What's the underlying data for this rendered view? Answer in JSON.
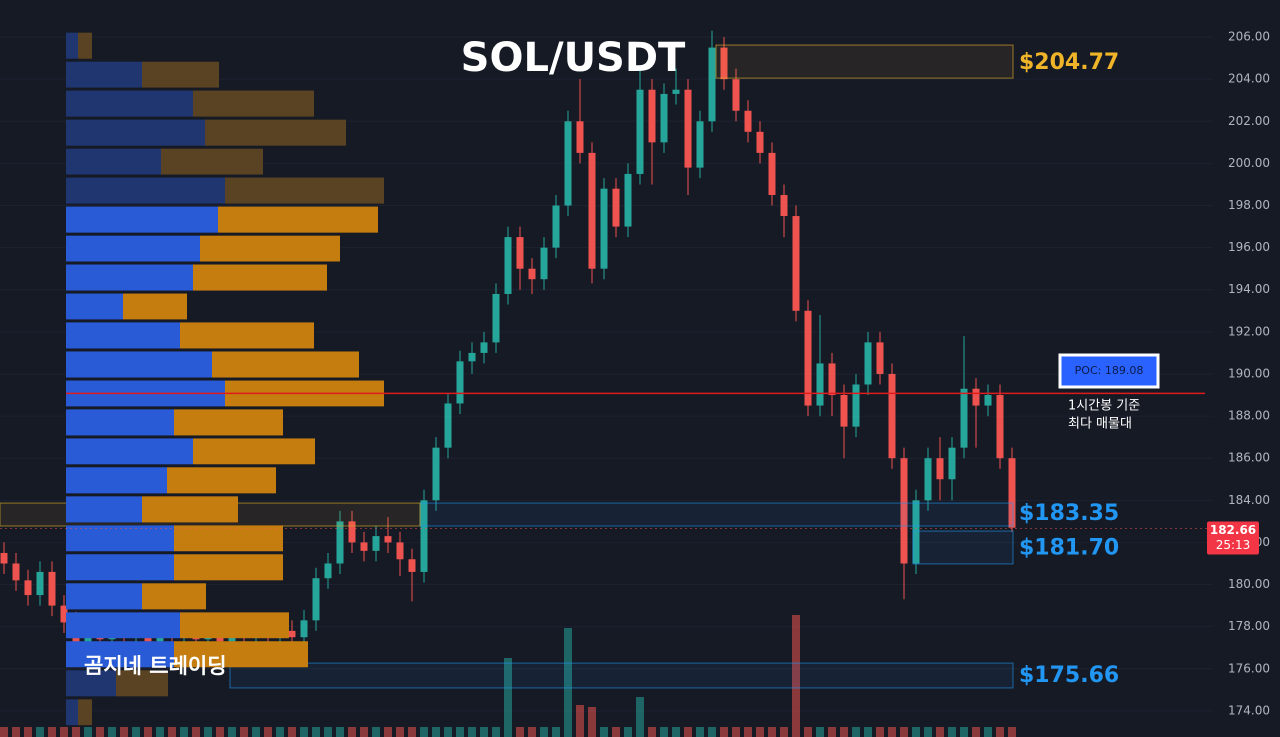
{
  "chart_data": {
    "type": "candlestick",
    "title": "SOL/USDT",
    "watermark": "곰지네 트레이딩",
    "ylim": [
      172.76,
      207.76
    ],
    "yticks": [
      {
        "value": 174,
        "label": "174.00"
      },
      {
        "value": 176,
        "label": "176.00"
      },
      {
        "value": 178,
        "label": "178.00"
      },
      {
        "value": 180,
        "label": "180.00"
      },
      {
        "value": 182,
        "label": "182.00"
      },
      {
        "value": 184,
        "label": "184.00"
      },
      {
        "value": 186,
        "label": "186.00"
      },
      {
        "value": 188,
        "label": "188.00"
      },
      {
        "value": 190,
        "label": "190.00"
      },
      {
        "value": 192,
        "label": "192.00"
      },
      {
        "value": 194,
        "label": "194.00"
      },
      {
        "value": 196,
        "label": "196.00"
      },
      {
        "value": 198,
        "label": "198.00"
      },
      {
        "value": 200,
        "label": "200.00"
      },
      {
        "value": 202,
        "label": "202.00"
      },
      {
        "value": 204,
        "label": "204.00"
      },
      {
        "value": 206,
        "label": "206.00"
      }
    ],
    "grid": true,
    "up_color": "#26a69a",
    "down_color": "#ef5350",
    "candles": {
      "open": [
        181.5,
        181.0,
        180.2,
        179.5,
        180.6,
        179.0,
        178.2,
        177.2,
        177.8,
        177.4,
        177.9,
        177.5,
        177.7,
        177.3,
        177.8,
        177.5,
        177.9,
        177.4,
        177.6,
        177.3,
        177.8,
        177.6,
        177.9,
        177.6,
        177.8,
        177.5,
        178.3,
        180.3,
        181.0,
        183.0,
        182.0,
        181.6,
        182.3,
        182.0,
        181.2,
        180.6,
        184.0,
        186.5,
        188.6,
        190.6,
        191.0,
        191.5,
        193.8,
        196.5,
        195.0,
        194.5,
        196.0,
        198.0,
        202.0,
        200.5,
        195.0,
        198.8,
        197.0,
        199.5,
        203.5,
        201.0,
        203.3,
        203.5,
        199.8,
        202.0,
        205.5,
        204.0,
        202.5,
        201.5,
        200.5,
        198.5,
        197.5,
        193.0,
        188.5,
        190.5,
        189.0,
        187.5,
        189.5,
        191.5,
        190.0,
        186.0,
        181.0,
        184.0,
        186.0,
        185.0,
        186.5,
        189.3,
        188.5,
        189.0,
        186.0
      ],
      "high": [
        182.0,
        181.5,
        180.7,
        181.1,
        181.1,
        179.5,
        178.7,
        178.3,
        178.3,
        178.4,
        178.4,
        178.2,
        178.2,
        178.3,
        178.3,
        178.4,
        178.4,
        178.1,
        178.1,
        178.3,
        178.3,
        178.4,
        178.4,
        178.3,
        178.3,
        178.8,
        180.8,
        181.5,
        183.5,
        183.5,
        182.5,
        182.8,
        183.2,
        182.5,
        181.7,
        184.5,
        187.0,
        189.1,
        191.1,
        191.5,
        192.0,
        194.3,
        197.0,
        197.0,
        195.5,
        196.5,
        198.5,
        202.5,
        204.0,
        201.0,
        199.3,
        199.3,
        200.0,
        204.5,
        204.0,
        203.8,
        204.5,
        204.0,
        202.5,
        206.3,
        206.0,
        204.5,
        203.0,
        202.0,
        201.0,
        199.0,
        198.0,
        193.5,
        192.8,
        191.0,
        189.5,
        190.0,
        192.0,
        192.0,
        190.5,
        186.5,
        184.5,
        186.5,
        187.0,
        187.0,
        191.8,
        189.8,
        189.5,
        189.5,
        186.5
      ],
      "low": [
        180.5,
        179.7,
        179.0,
        179.0,
        178.5,
        177.7,
        176.3,
        176.7,
        176.9,
        176.9,
        177.0,
        177.0,
        176.8,
        176.8,
        177.0,
        177.0,
        176.9,
        176.9,
        176.8,
        176.8,
        177.1,
        177.1,
        177.1,
        177.1,
        177.0,
        177.0,
        177.8,
        179.8,
        180.5,
        181.5,
        181.1,
        181.1,
        181.5,
        180.4,
        179.2,
        180.1,
        183.5,
        186.0,
        188.1,
        190.0,
        190.5,
        191.0,
        193.3,
        194.0,
        193.8,
        194.0,
        195.5,
        197.5,
        200.0,
        194.3,
        194.5,
        196.5,
        196.5,
        199.0,
        199.0,
        200.5,
        202.8,
        198.5,
        199.3,
        201.5,
        203.5,
        202.0,
        201.0,
        200.0,
        198.0,
        196.5,
        192.5,
        188.0,
        188.0,
        188.0,
        186.0,
        187.0,
        189.0,
        189.5,
        185.5,
        179.3,
        180.5,
        183.5,
        184.0,
        184.0,
        186.0,
        186.5,
        188.0,
        185.5,
        182.5
      ],
      "close": [
        181.0,
        180.2,
        179.5,
        180.6,
        179.0,
        178.2,
        177.2,
        177.8,
        177.4,
        177.9,
        177.5,
        177.7,
        177.3,
        177.8,
        177.5,
        177.9,
        177.4,
        177.6,
        177.3,
        177.8,
        177.6,
        177.9,
        177.6,
        177.8,
        177.5,
        178.3,
        180.3,
        181.0,
        183.0,
        182.0,
        181.6,
        182.3,
        182.0,
        181.2,
        180.6,
        184.0,
        186.5,
        188.6,
        190.6,
        191.0,
        191.5,
        193.8,
        196.5,
        195.0,
        194.5,
        196.0,
        198.0,
        202.0,
        200.5,
        195.0,
        198.8,
        197.0,
        199.5,
        203.5,
        201.0,
        203.3,
        203.5,
        199.8,
        202.0,
        205.5,
        204.0,
        202.5,
        201.5,
        200.5,
        198.5,
        197.5,
        193.0,
        188.5,
        190.5,
        189.0,
        187.5,
        189.5,
        191.5,
        190.0,
        186.0,
        181.0,
        184.0,
        186.0,
        185.0,
        186.5,
        189.3,
        188.5,
        189.0,
        186.0,
        182.7
      ],
      "volume": [
        10,
        10,
        10,
        10,
        10,
        10,
        10,
        10,
        10,
        10,
        10,
        10,
        10,
        10,
        10,
        10,
        10,
        10,
        10,
        10,
        10,
        10,
        10,
        10,
        10,
        10,
        10,
        10,
        10,
        10,
        10,
        10,
        10,
        10,
        10,
        10,
        10,
        10,
        10,
        10,
        10,
        10,
        79,
        10,
        10,
        10,
        10,
        109,
        32,
        30,
        10,
        10,
        10,
        40,
        10,
        10,
        10,
        10,
        10,
        10,
        10,
        10,
        10,
        10,
        10,
        10,
        122,
        10,
        10,
        10,
        10,
        10,
        10,
        10,
        10,
        10,
        10,
        10,
        10,
        10,
        10,
        10,
        10,
        10,
        10
      ]
    },
    "volume_profile": {
      "bins": [
        206.28,
        204.9,
        203.53,
        202.15,
        200.77,
        199.4,
        198.02,
        196.64,
        195.27,
        193.89,
        192.52,
        191.14,
        189.76,
        188.39,
        187.01,
        185.64,
        184.26,
        182.88,
        181.51,
        180.13,
        178.75,
        177.38,
        176.0,
        174.62,
        173.25
      ],
      "buy": [
        12,
        76,
        127,
        139,
        95,
        159,
        152,
        134,
        127,
        57,
        114,
        146,
        159,
        108,
        127,
        101,
        76,
        108,
        108,
        76,
        114,
        108,
        50,
        12
      ],
      "sell": [
        14,
        77,
        121,
        141,
        102,
        159,
        160,
        140,
        134,
        64,
        134,
        147,
        159,
        109,
        122,
        109,
        96,
        109,
        109,
        64,
        109,
        134,
        52,
        14
      ],
      "in_value_area": [
        false,
        false,
        false,
        false,
        false,
        false,
        true,
        true,
        true,
        true,
        true,
        true,
        true,
        true,
        true,
        true,
        true,
        true,
        true,
        true,
        true,
        true,
        false,
        false
      ]
    },
    "poc": {
      "value": 189.08,
      "label": "POC: 189.08",
      "note": [
        "1시간봉 기준",
        "최다 매물대"
      ]
    },
    "zones": [
      {
        "top": 205.62,
        "bottom": 204.05,
        "value": 204.77,
        "label": "$204.77",
        "color": "#f0b429"
      },
      {
        "top": 183.87,
        "bottom": 182.78,
        "value": 183.35,
        "label": "$183.35",
        "color": "#2196f3"
      },
      {
        "top": 182.54,
        "bottom": 180.98,
        "value": 181.7,
        "label": "$181.70",
        "color": "#2196f3"
      },
      {
        "top": 176.27,
        "bottom": 175.09,
        "value": 175.66,
        "label": "$175.66",
        "color": "#2196f3"
      }
    ],
    "last_price": {
      "value": 182.66,
      "countdown": "25:13"
    }
  }
}
